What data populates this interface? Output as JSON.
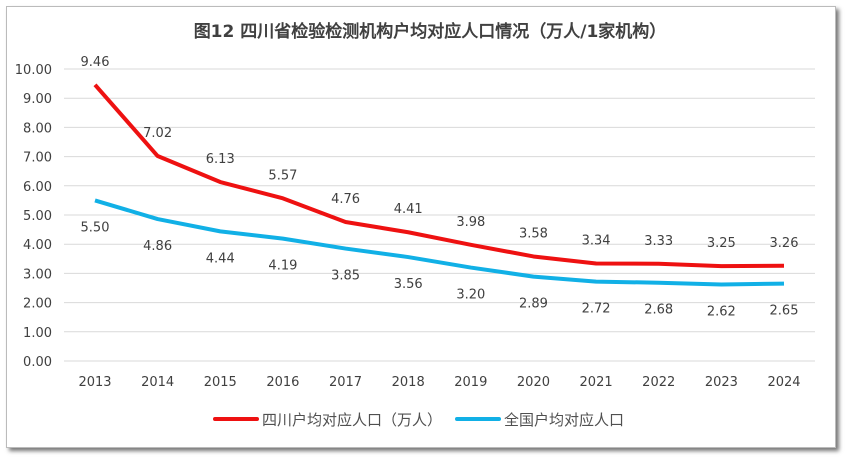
{
  "chart_data": {
    "type": "line",
    "title": "图12  四川省检验检测机构户均对应人口情况（万人/1家机构）",
    "xlabel": "",
    "ylabel": "",
    "categories": [
      "2013",
      "2014",
      "2015",
      "2016",
      "2017",
      "2018",
      "2019",
      "2020",
      "2021",
      "2022",
      "2023",
      "2024"
    ],
    "ylim": [
      0,
      10
    ],
    "yticks": [
      "0.00",
      "1.00",
      "2.00",
      "3.00",
      "4.00",
      "5.00",
      "6.00",
      "7.00",
      "8.00",
      "9.00",
      "10.00"
    ],
    "grid": true,
    "legend_position": "bottom",
    "series": [
      {
        "name": "四川户均对应人口（万人）",
        "color": "#ee1111",
        "values": [
          9.46,
          7.02,
          6.13,
          5.57,
          4.76,
          4.41,
          3.98,
          3.58,
          3.34,
          3.33,
          3.25,
          3.26
        ]
      },
      {
        "name": "全国户均对应人口",
        "color": "#11b0e6",
        "values": [
          5.5,
          4.86,
          4.44,
          4.19,
          3.85,
          3.56,
          3.2,
          2.89,
          2.72,
          2.68,
          2.62,
          2.65
        ]
      }
    ]
  }
}
